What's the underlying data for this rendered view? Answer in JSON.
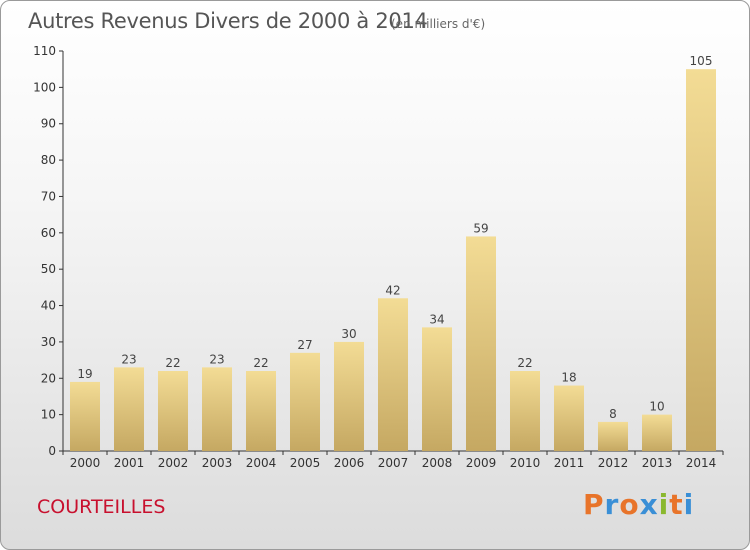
{
  "header": {
    "title": "Autres Revenus Divers de 2000 à 2014",
    "subtitle": "(en milliers d'€)"
  },
  "footer": {
    "commune": "COURTEILLES",
    "logo": "Proxiti",
    "logo_colors": [
      "#e8742a",
      "#3a8fd6",
      "#e8742a",
      "#3a8fd6",
      "#8ab82e",
      "#e8742a",
      "#3a8fd6"
    ]
  },
  "colors": {
    "bar_light": "#f3dc95",
    "bar_dark": "#c5a862",
    "axis": "#333333",
    "commune": "#c8102e"
  },
  "chart_data": {
    "type": "bar",
    "title": "Autres Revenus Divers de 2000 à 2014",
    "subtitle": "(en milliers d'€)",
    "categories": [
      "2000",
      "2001",
      "2002",
      "2003",
      "2004",
      "2005",
      "2006",
      "2007",
      "2008",
      "2009",
      "2010",
      "2011",
      "2012",
      "2013",
      "2014"
    ],
    "values": [
      19,
      23,
      22,
      23,
      22,
      27,
      30,
      42,
      34,
      59,
      22,
      18,
      8,
      10,
      105
    ],
    "ylim": [
      0,
      110
    ],
    "yticks": [
      0,
      10,
      20,
      30,
      40,
      50,
      60,
      70,
      80,
      90,
      100,
      110
    ],
    "grid": false,
    "data_labels": true
  }
}
